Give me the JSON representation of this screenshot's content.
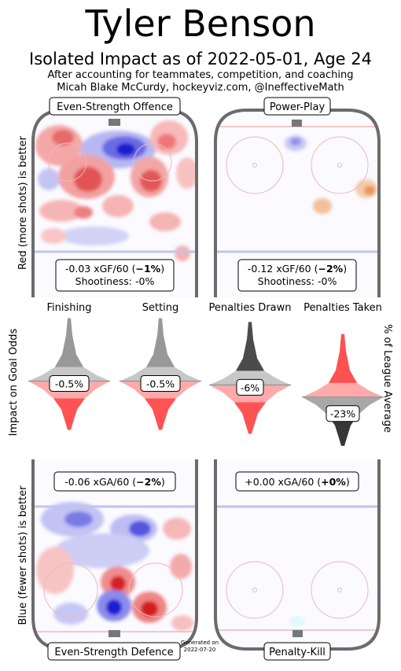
{
  "header": {
    "title": "Tyler Benson",
    "subtitle": "Isolated Impact as of 2022-05-01, Age 24",
    "note_line1": "After accounting for teammates, competition, and coaching",
    "note_line2": "Micah Blake McCurdy, hockeyviz.com, @IneffectiveMath"
  },
  "footer": {
    "generated": "Generated on 2022-07-20"
  },
  "chart_data": [
    {
      "type": "heatmap",
      "title": "Even-Strength Offence",
      "ylabel": "Red (more shots) is better",
      "stat_line": "-0.03 xGF/60",
      "stat_pct": "−1%",
      "shootiness": "Shootiness: -0%",
      "value_xgf60": -0.03,
      "pct_league": -1
    },
    {
      "type": "heatmap",
      "title": "Power-Play",
      "stat_line": "-0.12 xGF/60",
      "stat_pct": "−2%",
      "shootiness": "Shootiness: -0%",
      "value_xgf60": -0.12,
      "pct_league": -2
    },
    {
      "type": "violin",
      "ylabel_left": "Impact on Goal Odds",
      "ylabel_right": "% of League Average",
      "categories": [
        "Finishing",
        "Setting",
        "Penalties Drawn",
        "Penalties Taken"
      ],
      "labels": [
        "-0.5%",
        "-0.5%",
        "-6%",
        "-23%"
      ],
      "values": [
        -0.5,
        -0.5,
        -6,
        -23
      ]
    },
    {
      "type": "heatmap",
      "title": "Even-Strength Defence",
      "ylabel": "Blue (fewer shots) is better",
      "stat_line": "-0.06 xGA/60",
      "stat_pct": "−2%",
      "value_xga60": -0.06,
      "pct_league": -2
    },
    {
      "type": "heatmap",
      "title": "Penalty-Kill",
      "stat_line": "+0.00 xGA/60",
      "stat_pct": "+0%",
      "value_xga60": 0.0,
      "pct_league": 0
    }
  ]
}
